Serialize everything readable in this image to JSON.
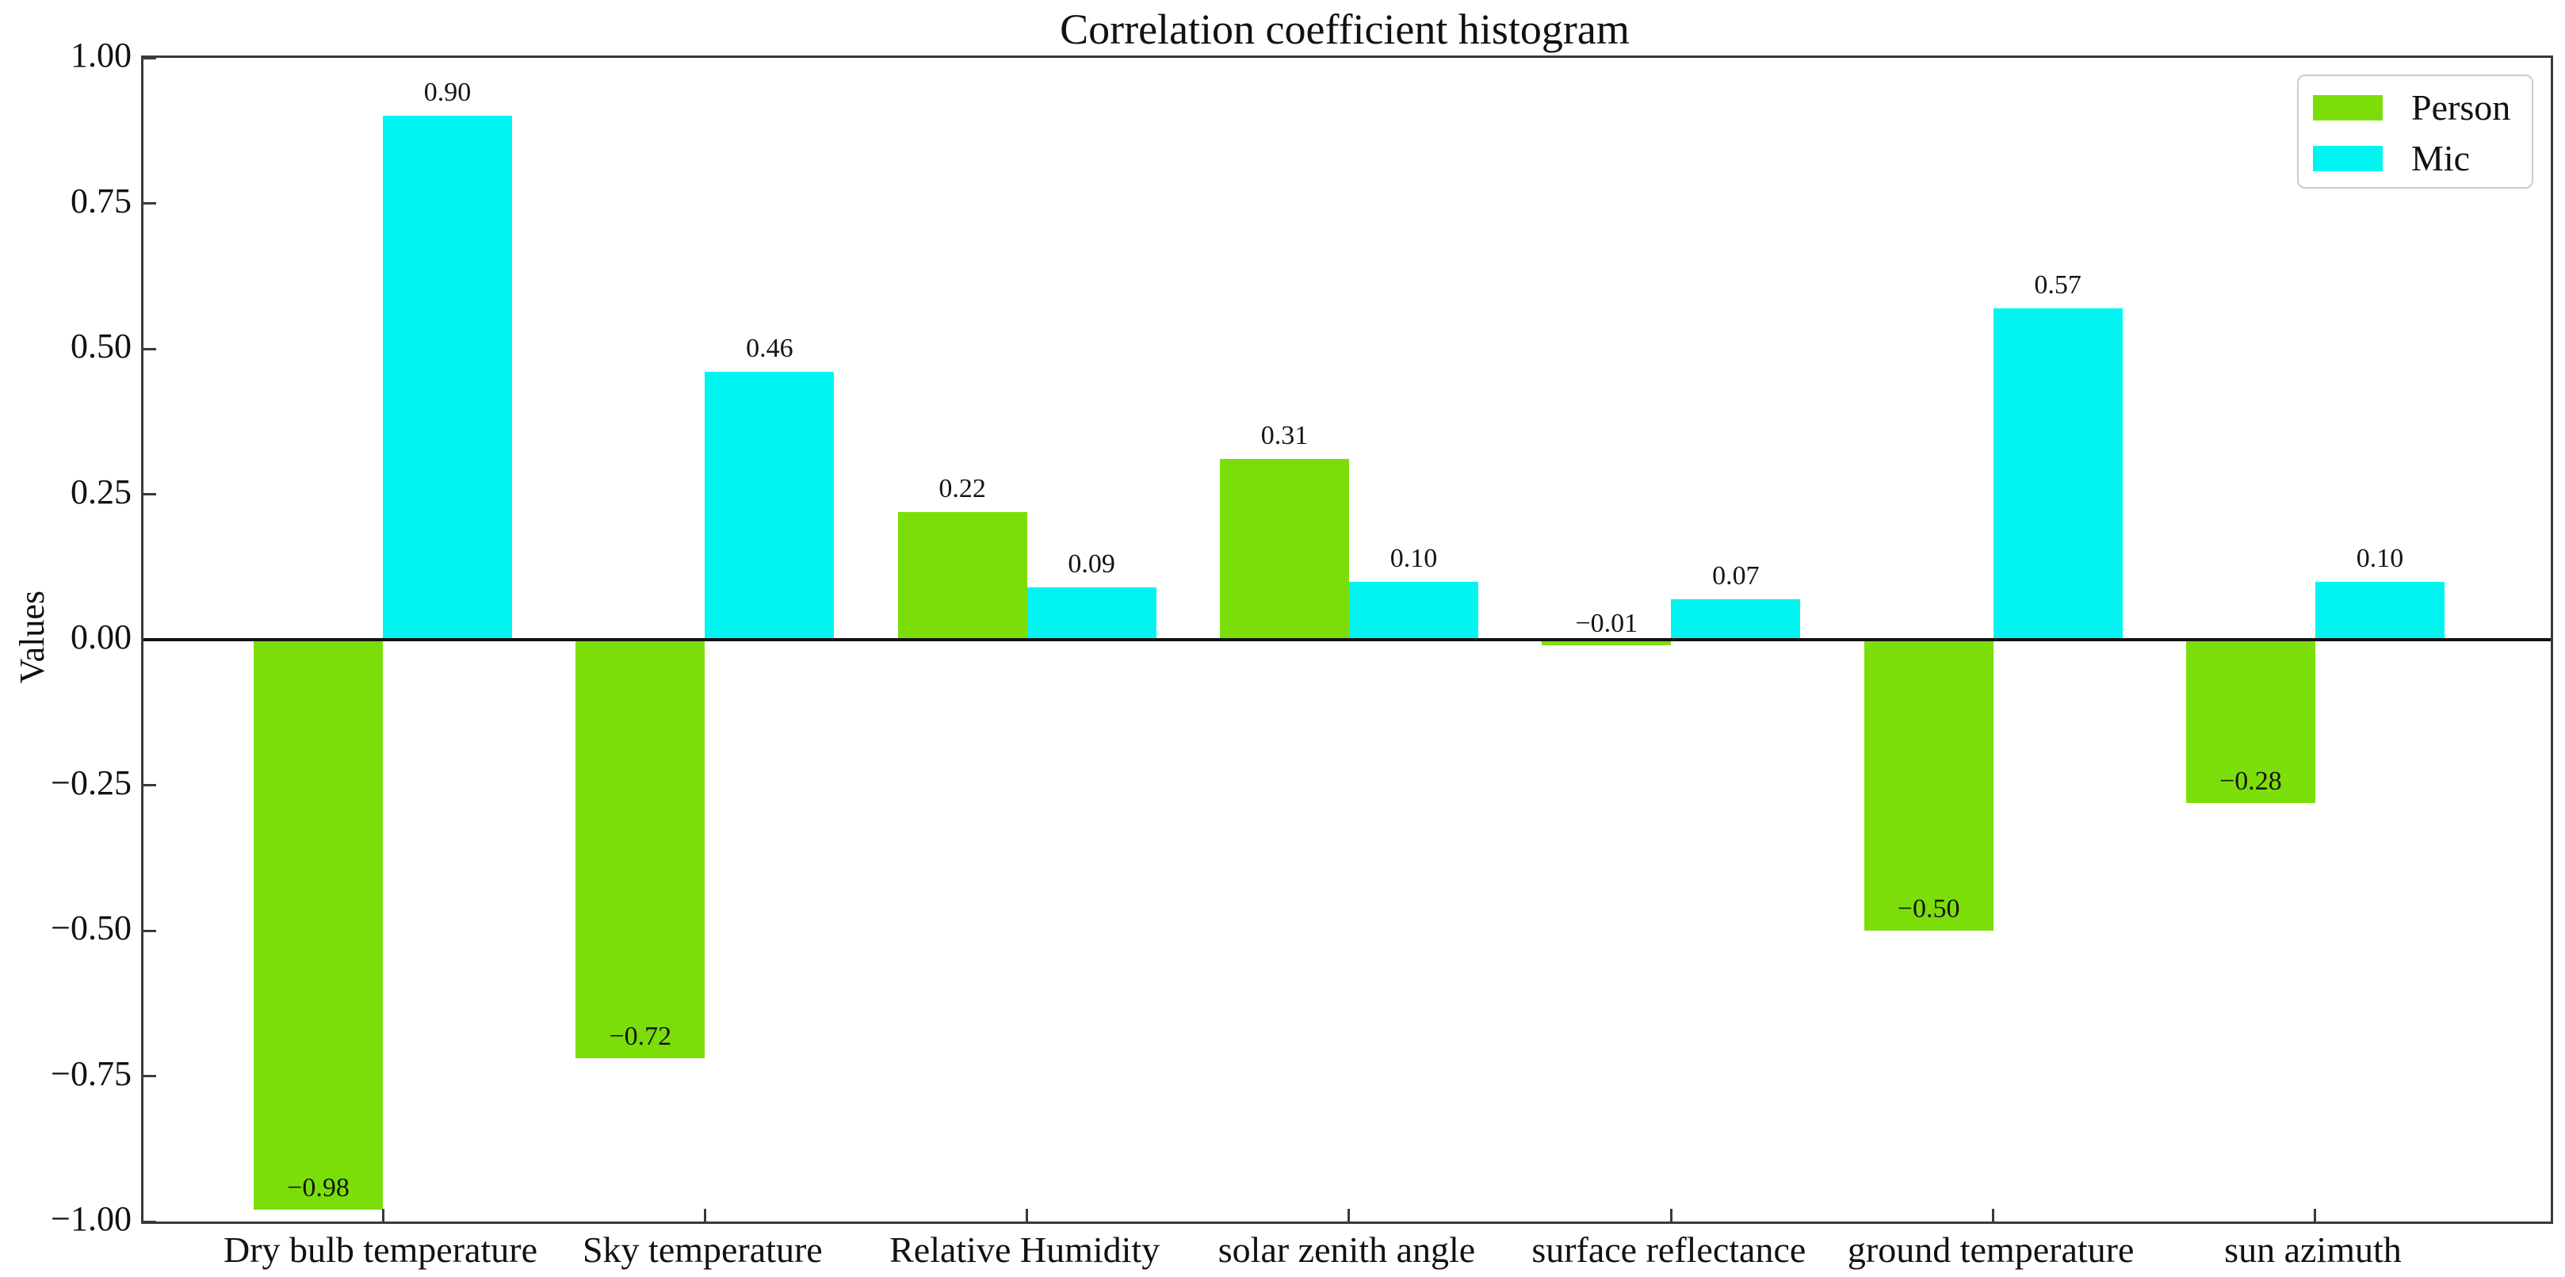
{
  "figure": {
    "title": "Correlation coefficient histogram",
    "background_color": "#ffffff"
  },
  "chart_data": {
    "type": "bar",
    "title": "Correlation coefficient histogram",
    "xlabel": "",
    "ylabel": "Values",
    "categories": [
      "Dry bulb temperature",
      "Sky temperature",
      "Relative Humidity",
      "solar zenith angle",
      "surface reflectance",
      "ground temperature",
      "sun azimuth"
    ],
    "series": [
      {
        "name": "Person",
        "color": "#7CDE08",
        "values": [
          -0.98,
          -0.72,
          0.22,
          0.31,
          -0.01,
          -0.5,
          -0.28
        ],
        "labels": [
          "−0.98",
          "−0.72",
          "0.22",
          "0.31",
          "−0.01",
          "−0.50",
          "−0.28"
        ]
      },
      {
        "name": "Mic",
        "color": "#00F5F0",
        "values": [
          0.9,
          0.46,
          0.09,
          0.1,
          0.07,
          0.57,
          0.1
        ],
        "labels": [
          "0.90",
          "0.46",
          "0.09",
          "0.10",
          "0.07",
          "0.57",
          "0.10"
        ]
      }
    ],
    "ylim": [
      -1.0,
      1.0
    ],
    "y_ticks": [
      1.0,
      0.75,
      0.5,
      0.25,
      0.0,
      -0.25,
      -0.5,
      -0.75,
      -1.0
    ],
    "y_tick_labels": [
      "1.00",
      "0.75",
      "0.50",
      "0.25",
      "0.00",
      "−0.25",
      "−0.50",
      "−0.75",
      "−1.00"
    ],
    "grid": false,
    "zero_line": true,
    "legend": {
      "position": "upper right",
      "entries": [
        "Person",
        "Mic"
      ]
    }
  }
}
